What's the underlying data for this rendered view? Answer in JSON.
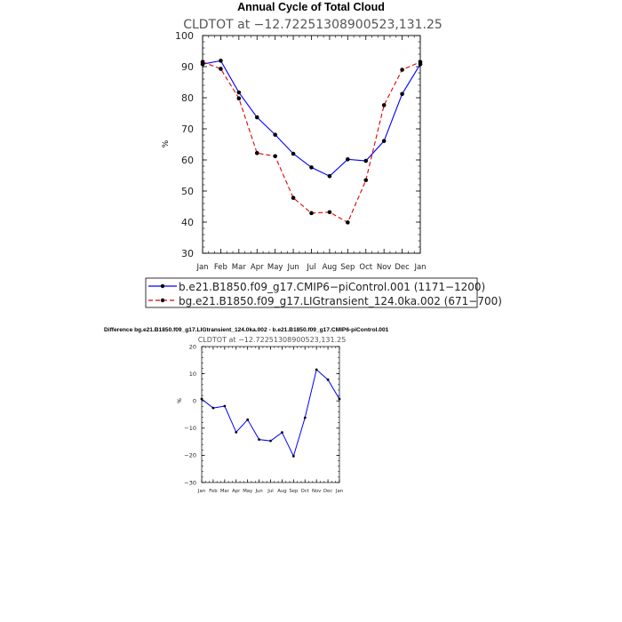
{
  "chart_data": [
    {
      "type": "line",
      "title": "Annual Cycle of Total Cloud",
      "subtitle": "CLDTOT at −12.72251308900523,131.25",
      "xlabel": "",
      "ylabel": "%",
      "categories": [
        "Jan",
        "Feb",
        "Mar",
        "Apr",
        "May",
        "Jun",
        "Jul",
        "Aug",
        "Sep",
        "Oct",
        "Nov",
        "Dec",
        "Jan"
      ],
      "ylim": [
        30,
        100
      ],
      "yticks": [
        30,
        40,
        50,
        60,
        70,
        80,
        90,
        100
      ],
      "grid": false,
      "legend_position": "bottom",
      "series": [
        {
          "name": "b.e21.B1850.f09_g17.CMIP6−piControl.001 (1171−1200)",
          "color": "#0000ff",
          "dash": "solid",
          "values": [
            90.8,
            91.9,
            81.7,
            73.7,
            68.1,
            62.0,
            57.6,
            54.8,
            60.2,
            59.7,
            66.1,
            81.2,
            90.8
          ]
        },
        {
          "name": "bg.e21.B1850.f09_g17.LIGtransient_124.0ka.002 (671−700)",
          "color": "#e00000",
          "dash": "dashed",
          "values": [
            91.5,
            89.3,
            79.8,
            62.2,
            61.2,
            47.8,
            42.9,
            43.2,
            39.9,
            53.5,
            77.6,
            89.0,
            91.5
          ]
        }
      ]
    },
    {
      "type": "line",
      "title": "Difference bg.e21.B1850.f09_g17.LIGtransient_124.0ka.002 - b.e21.B1850.f09_g17.CMIP6-piControl.001",
      "subtitle": "CLDTOT at −12.72251308900523,131.25",
      "xlabel": "",
      "ylabel": "%",
      "categories": [
        "Jan",
        "Feb",
        "Mar",
        "Apr",
        "May",
        "Jun",
        "Jul",
        "Aug",
        "Sep",
        "Oct",
        "Nov",
        "Dec",
        "Jan"
      ],
      "ylim": [
        -30,
        20
      ],
      "yticks": [
        -30,
        -20,
        -10,
        0,
        10,
        20
      ],
      "grid": false,
      "series": [
        {
          "color": "#0000ff",
          "dash": "solid",
          "values": [
            0.7,
            -2.6,
            -1.9,
            -11.5,
            -6.9,
            -14.2,
            -14.7,
            -11.6,
            -20.3,
            -6.2,
            11.5,
            7.8,
            0.7
          ]
        }
      ]
    }
  ]
}
